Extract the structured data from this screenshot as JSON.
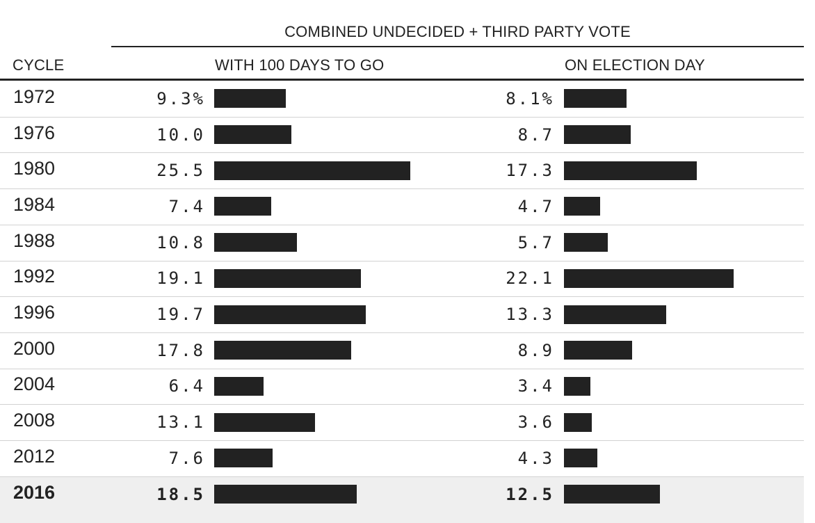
{
  "chart_data": {
    "type": "table",
    "title": "COMBINED UNDECIDED + THIRD PARTY VOTE",
    "columns": [
      "CYCLE",
      "WITH 100 DAYS TO GO",
      "ON ELECTION DAY"
    ],
    "unit_suffix": "%",
    "highlight_color": "#efefef",
    "bar_color": "#222222",
    "rows": [
      {
        "cycle": "1972",
        "days100": 9.3,
        "days100_label": "9.3%",
        "election": 8.1,
        "election_label": "8.1%"
      },
      {
        "cycle": "1976",
        "days100": 10.0,
        "days100_label": "10.0",
        "election": 8.7,
        "election_label": "8.7"
      },
      {
        "cycle": "1980",
        "days100": 25.5,
        "days100_label": "25.5",
        "election": 17.3,
        "election_label": "17.3"
      },
      {
        "cycle": "1984",
        "days100": 7.4,
        "days100_label": "7.4",
        "election": 4.7,
        "election_label": "4.7"
      },
      {
        "cycle": "1988",
        "days100": 10.8,
        "days100_label": "10.8",
        "election": 5.7,
        "election_label": "5.7"
      },
      {
        "cycle": "1992",
        "days100": 19.1,
        "days100_label": "19.1",
        "election": 22.1,
        "election_label": "22.1"
      },
      {
        "cycle": "1996",
        "days100": 19.7,
        "days100_label": "19.7",
        "election": 13.3,
        "election_label": "13.3"
      },
      {
        "cycle": "2000",
        "days100": 17.8,
        "days100_label": "17.8",
        "election": 8.9,
        "election_label": "8.9"
      },
      {
        "cycle": "2004",
        "days100": 6.4,
        "days100_label": "6.4",
        "election": 3.4,
        "election_label": "3.4"
      },
      {
        "cycle": "2008",
        "days100": 13.1,
        "days100_label": "13.1",
        "election": 3.6,
        "election_label": "3.6"
      },
      {
        "cycle": "2012",
        "days100": 7.6,
        "days100_label": "7.6",
        "election": 4.3,
        "election_label": "4.3"
      },
      {
        "cycle": "2016",
        "days100": 18.5,
        "days100_label": "18.5",
        "election": 12.5,
        "election_label": "12.5",
        "highlight": true
      }
    ]
  }
}
